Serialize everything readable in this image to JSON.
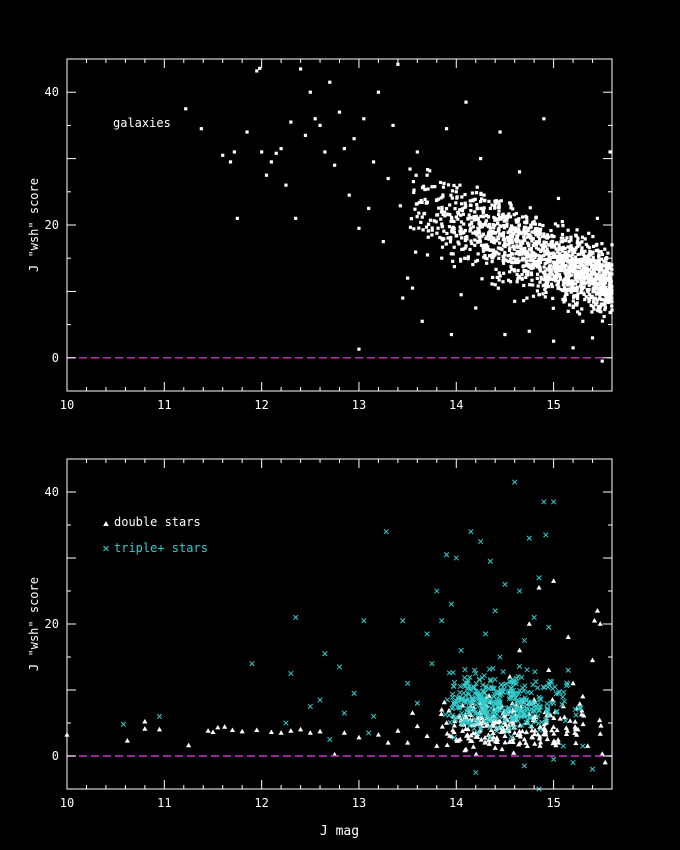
{
  "chart_data": [
    {
      "type": "scatter",
      "title": "",
      "xlabel": "",
      "ylabel": "J \"wsh\" score",
      "xlim": [
        10,
        15.6
      ],
      "ylim": [
        -5,
        45
      ],
      "xticks": [
        10,
        11,
        12,
        13,
        14,
        15
      ],
      "yticks": [
        0,
        20,
        40
      ],
      "grid": false,
      "reference_line": {
        "y": 0,
        "style": "dashed",
        "color": "#cc33cc"
      },
      "annotation": "galaxies",
      "colors": {
        "points": "#ffffff",
        "axes": "#ffffff"
      },
      "series": [
        {
          "name": "galaxies",
          "marker": "dot",
          "points": [
            [
              11.22,
              37.5
            ],
            [
              11.38,
              34.5
            ],
            [
              11.6,
              30.5
            ],
            [
              11.68,
              29.5
            ],
            [
              11.72,
              31
            ],
            [
              11.75,
              21
            ],
            [
              11.85,
              34
            ],
            [
              11.95,
              43.2
            ],
            [
              11.98,
              43.6
            ],
            [
              12.0,
              31
            ],
            [
              12.05,
              27.5
            ],
            [
              12.1,
              29.5
            ],
            [
              12.15,
              30.8
            ],
            [
              12.2,
              31.5
            ],
            [
              12.25,
              26
            ],
            [
              12.3,
              35.5
            ],
            [
              12.35,
              21
            ],
            [
              12.4,
              43.5
            ],
            [
              12.45,
              33.5
            ],
            [
              12.5,
              40
            ],
            [
              12.55,
              36
            ],
            [
              12.6,
              35
            ],
            [
              12.65,
              31
            ],
            [
              12.7,
              41.5
            ],
            [
              12.75,
              29
            ],
            [
              12.8,
              37
            ],
            [
              12.85,
              31.5
            ],
            [
              12.9,
              24.5
            ],
            [
              12.95,
              33
            ],
            [
              13.0,
              1.3
            ],
            [
              13.0,
              19.5
            ],
            [
              13.05,
              36
            ],
            [
              13.1,
              22.5
            ],
            [
              13.15,
              29.5
            ],
            [
              13.2,
              40
            ],
            [
              13.25,
              17.5
            ],
            [
              13.3,
              27
            ],
            [
              13.35,
              35
            ],
            [
              13.4,
              44.2
            ],
            [
              13.45,
              9
            ],
            [
              13.5,
              12
            ],
            [
              13.55,
              10.5
            ],
            [
              13.6,
              31
            ],
            [
              13.65,
              5.5
            ],
            [
              13.7,
              27.5
            ],
            [
              13.75,
              18.5
            ],
            [
              13.8,
              21.5
            ],
            [
              13.85,
              15
            ],
            [
              13.9,
              34.5
            ],
            [
              13.95,
              3.5
            ],
            [
              14.0,
              25
            ],
            [
              14.05,
              9.5
            ],
            [
              14.1,
              38.5
            ],
            [
              14.15,
              19.5
            ],
            [
              14.2,
              7.5
            ],
            [
              14.25,
              30
            ],
            [
              14.3,
              15
            ],
            [
              14.35,
              22.5
            ],
            [
              14.4,
              11
            ],
            [
              14.45,
              34
            ],
            [
              14.5,
              3.5
            ],
            [
              14.55,
              18
            ],
            [
              14.6,
              8.5
            ],
            [
              14.65,
              28
            ],
            [
              14.7,
              13
            ],
            [
              14.75,
              4
            ],
            [
              14.8,
              20.5
            ],
            [
              14.85,
              9.5
            ],
            [
              14.9,
              36
            ],
            [
              14.95,
              14.5
            ],
            [
              15.0,
              2.5
            ],
            [
              15.05,
              24
            ],
            [
              15.1,
              11
            ],
            [
              15.15,
              7
            ],
            [
              15.2,
              1.5
            ],
            [
              15.25,
              18
            ],
            [
              15.3,
              5.5
            ],
            [
              15.35,
              13
            ],
            [
              15.4,
              3
            ],
            [
              15.45,
              21
            ],
            [
              15.5,
              -0.5
            ],
            [
              15.55,
              9
            ],
            [
              15.58,
              31
            ]
          ],
          "cloud": {
            "x": [
              13.4,
              15.6
            ],
            "y_center": 14,
            "y_spread": 10,
            "count": 1500,
            "note_placeholder": ""
          }
        }
      ]
    },
    {
      "type": "scatter",
      "title": "",
      "xlabel": "J mag",
      "ylabel": "J \"wsh\" score",
      "xlim": [
        10,
        15.6
      ],
      "ylim": [
        -5,
        45
      ],
      "xticks": [
        10,
        11,
        12,
        13,
        14,
        15
      ],
      "yticks": [
        0,
        20,
        40
      ],
      "grid": false,
      "reference_line": {
        "y": 0,
        "style": "dashed",
        "color": "#cc33cc"
      },
      "legend_placement": "top-left",
      "colors": {
        "double": "#ffffff",
        "triple": "#33cccc",
        "axes": "#ffffff"
      },
      "series": [
        {
          "name": "double stars",
          "marker": "triangle",
          "points": [
            [
              10.0,
              3.2
            ],
            [
              10.62,
              2.3
            ],
            [
              10.8,
              5.2
            ],
            [
              10.8,
              4.1
            ],
            [
              10.95,
              4.0
            ],
            [
              11.25,
              1.6
            ],
            [
              11.45,
              3.8
            ],
            [
              11.5,
              3.6
            ],
            [
              11.55,
              4.3
            ],
            [
              11.62,
              4.4
            ],
            [
              11.7,
              3.9
            ],
            [
              11.8,
              3.7
            ],
            [
              11.95,
              3.9
            ],
            [
              12.1,
              3.6
            ],
            [
              12.2,
              3.5
            ],
            [
              12.3,
              3.8
            ],
            [
              12.4,
              4.0
            ],
            [
              12.5,
              3.5
            ],
            [
              12.6,
              3.7
            ],
            [
              12.75,
              0.2
            ],
            [
              12.85,
              3.5
            ],
            [
              13.0,
              2.8
            ],
            [
              13.2,
              3.2
            ],
            [
              13.3,
              2.0
            ],
            [
              13.4,
              3.8
            ],
            [
              13.5,
              2.0
            ],
            [
              13.55,
              6.5
            ],
            [
              13.6,
              4.5
            ],
            [
              13.7,
              3.0
            ],
            [
              13.8,
              1.5
            ],
            [
              13.85,
              7.0
            ],
            [
              13.9,
              5.0
            ],
            [
              14.0,
              2.5
            ],
            [
              14.05,
              4.8
            ],
            [
              14.1,
              1.0
            ],
            [
              14.15,
              6.2
            ],
            [
              14.2,
              3.5
            ],
            [
              14.25,
              8.0
            ],
            [
              14.3,
              2.0
            ],
            [
              14.35,
              5.5
            ],
            [
              14.4,
              1.2
            ],
            [
              14.45,
              9.5
            ],
            [
              14.5,
              3.0
            ],
            [
              14.55,
              12.0
            ],
            [
              14.6,
              6.0
            ],
            [
              14.65,
              16.0
            ],
            [
              14.7,
              2.5
            ],
            [
              14.75,
              20.0
            ],
            [
              14.8,
              8.5
            ],
            [
              14.85,
              25.5
            ],
            [
              14.9,
              4.0
            ],
            [
              14.95,
              13.0
            ],
            [
              15.0,
              26.5
            ],
            [
              15.05,
              2.0
            ],
            [
              15.1,
              7.5
            ],
            [
              15.15,
              18.0
            ],
            [
              15.2,
              11.0
            ],
            [
              15.25,
              4.0
            ],
            [
              15.3,
              9.0
            ],
            [
              15.35,
              1.5
            ],
            [
              15.4,
              14.5
            ],
            [
              15.42,
              20.5
            ],
            [
              15.45,
              22.0
            ],
            [
              15.48,
              20.0
            ],
            [
              15.5,
              0.3
            ],
            [
              15.53,
              -1.0
            ]
          ],
          "cloud": {
            "x": [
              13.4,
              15.55
            ],
            "y_center": 5,
            "y_spread": 6,
            "count": 260,
            "note_placeholder": ""
          }
        },
        {
          "name": "triple+ stars",
          "marker": "x",
          "points": [
            [
              10.58,
              4.8
            ],
            [
              10.95,
              6.0
            ],
            [
              11.9,
              14.0
            ],
            [
              12.25,
              5.0
            ],
            [
              12.3,
              12.5
            ],
            [
              12.35,
              21.0
            ],
            [
              12.5,
              7.5
            ],
            [
              12.6,
              8.5
            ],
            [
              12.65,
              15.5
            ],
            [
              12.7,
              2.5
            ],
            [
              12.8,
              13.5
            ],
            [
              12.85,
              6.5
            ],
            [
              12.95,
              9.5
            ],
            [
              13.05,
              20.5
            ],
            [
              13.1,
              3.5
            ],
            [
              13.15,
              6.0
            ],
            [
              13.28,
              34.0
            ],
            [
              13.45,
              20.5
            ],
            [
              13.5,
              11.0
            ],
            [
              13.6,
              8.0
            ],
            [
              13.7,
              18.5
            ],
            [
              13.75,
              14.0
            ],
            [
              13.8,
              25.0
            ],
            [
              13.85,
              20.5
            ],
            [
              13.9,
              30.5
            ],
            [
              13.95,
              23.0
            ],
            [
              14.0,
              30.0
            ],
            [
              14.05,
              16.0
            ],
            [
              14.1,
              8.5
            ],
            [
              14.15,
              34.0
            ],
            [
              14.2,
              12.5
            ],
            [
              14.25,
              32.5
            ],
            [
              14.3,
              18.5
            ],
            [
              14.35,
              29.5
            ],
            [
              14.4,
              22.0
            ],
            [
              14.45,
              15.0
            ],
            [
              14.5,
              26.0
            ],
            [
              14.55,
              9.0
            ],
            [
              14.6,
              41.5
            ],
            [
              14.65,
              25.0
            ],
            [
              14.7,
              17.5
            ],
            [
              14.75,
              33.0
            ],
            [
              14.8,
              21.0
            ],
            [
              14.85,
              27.0
            ],
            [
              14.9,
              38.5
            ],
            [
              14.92,
              33.5
            ],
            [
              14.95,
              19.5
            ],
            [
              15.0,
              38.5
            ],
            [
              15.05,
              9.5
            ],
            [
              15.1,
              1.5
            ],
            [
              15.15,
              13.0
            ],
            [
              15.2,
              -1.0
            ],
            [
              15.3,
              1.5
            ],
            [
              15.4,
              -2.0
            ],
            [
              14.2,
              -2.5
            ],
            [
              14.85,
              -5.0
            ],
            [
              14.7,
              -1.5
            ],
            [
              15.0,
              -0.5
            ]
          ],
          "cloud": {
            "x": [
              13.5,
              15.3
            ],
            "y_center": 8,
            "y_spread": 7,
            "count": 380,
            "note_placeholder": ""
          }
        }
      ]
    }
  ]
}
